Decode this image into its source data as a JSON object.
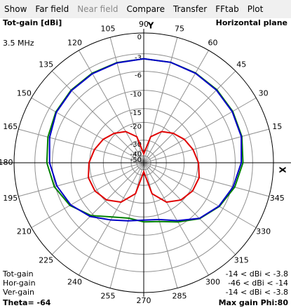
{
  "menu": [
    {
      "name": "Show",
      "enabled": true
    },
    {
      "name": "Far field",
      "enabled": true
    },
    {
      "name": "Near field",
      "enabled": false
    },
    {
      "name": "Compare",
      "enabled": true
    },
    {
      "name": "Transfer",
      "enabled": true
    },
    {
      "name": "FFtab",
      "enabled": true
    },
    {
      "name": "Plot",
      "enabled": true
    }
  ],
  "chart_data": {
    "type": "polar",
    "title": "Tot-gain [dBi]",
    "subtitle": "Horizontal plane",
    "frequency": "3.5 MHz",
    "x_axis_label": "X",
    "y_axis_label": "Y",
    "scale": "arrl",
    "rmax": 0,
    "rticks": [
      0,
      -3,
      -6,
      -10,
      -15,
      -20,
      -30,
      -40,
      -50
    ],
    "angle_ticks": [
      15,
      30,
      45,
      60,
      75,
      90,
      105,
      120,
      135,
      150,
      165,
      180,
      195,
      210,
      225,
      240,
      255,
      270,
      285,
      300,
      315,
      330,
      345
    ],
    "angles": [
      0,
      15,
      30,
      45,
      60,
      75,
      90,
      105,
      120,
      135,
      150,
      165,
      180,
      195,
      210,
      225,
      240,
      255,
      270,
      285,
      300,
      315,
      330,
      345
    ],
    "series": [
      {
        "name": "Tot-gain",
        "color": "#008000",
        "range": "-14 < dBi < -3.8",
        "values": [
          -4.6,
          -4.2,
          -4.0,
          -3.9,
          -3.85,
          -3.8,
          -3.8,
          -3.85,
          -3.9,
          -4.0,
          -4.2,
          -4.6,
          -5.0,
          -5.8,
          -7.2,
          -9.5,
          -12.5,
          -14,
          -13.5,
          -13,
          -11,
          -8.5,
          -6.8,
          -5.5
        ]
      },
      {
        "name": "Hor-gain",
        "color": "#e00000",
        "range": "-46 < dBi < -14",
        "values": [
          -14.8,
          -16,
          -17.5,
          -19.5,
          -22,
          -27,
          -46,
          -27,
          -22,
          -19.5,
          -17.5,
          -16,
          -14.8,
          -14,
          -14.3,
          -15.5,
          -18,
          -24,
          -46,
          -24,
          -18,
          -15.5,
          -14.3,
          -14
        ]
      },
      {
        "name": "Ver-gain",
        "color": "#0000c8",
        "range": "-14 < dBi < -3.8",
        "values": [
          -4.9,
          -4.3,
          -4.1,
          -4.0,
          -3.9,
          -3.8,
          -3.8,
          -3.9,
          -4.0,
          -4.1,
          -4.3,
          -4.9,
          -5.5,
          -6.3,
          -7.4,
          -9.2,
          -11.6,
          -13.2,
          -14,
          -13.6,
          -11.4,
          -8.6,
          -6.9,
          -5.8
        ]
      }
    ],
    "theta": "Theta= -64",
    "max_gain": "Max gain Phi:80"
  }
}
